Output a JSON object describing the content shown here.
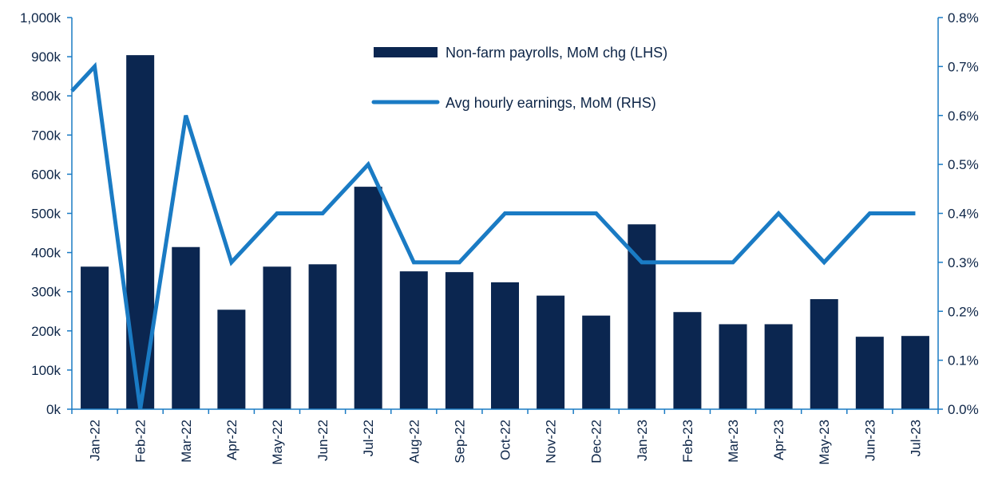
{
  "chart_data": {
    "type": "bar",
    "categories": [
      "Jan-22",
      "Feb-22",
      "Mar-22",
      "Apr-22",
      "May-22",
      "Jun-22",
      "Jul-22",
      "Aug-22",
      "Sep-22",
      "Oct-22",
      "Nov-22",
      "Dec-22",
      "Jan-23",
      "Feb-23",
      "Mar-23",
      "Apr-23",
      "May-23",
      "Jun-23",
      "Jul-23"
    ],
    "series": [
      {
        "name": "Non-farm payrolls, MoM chg (LHS)",
        "type": "bar",
        "axis": "left",
        "color": "#0b2650",
        "values": [
          364,
          904,
          414,
          254,
          364,
          370,
          568,
          352,
          350,
          324,
          290,
          239,
          472,
          248,
          217,
          217,
          281,
          185,
          187
        ]
      },
      {
        "name": "Avg hourly earnings, MoM (RHS)",
        "type": "line",
        "axis": "right",
        "color": "#1a7bc4",
        "start_value": 0.65,
        "values": [
          0.7,
          0.0,
          0.6,
          0.3,
          0.4,
          0.4,
          0.5,
          0.3,
          0.3,
          0.4,
          0.4,
          0.4,
          0.3,
          0.3,
          0.3,
          0.4,
          0.3,
          0.4,
          0.4
        ]
      }
    ],
    "y_left": {
      "min": 0,
      "max": 1000,
      "ticks": [
        0,
        100,
        200,
        300,
        400,
        500,
        600,
        700,
        800,
        900,
        1000
      ],
      "tick_labels": [
        "0k",
        "100k",
        "200k",
        "300k",
        "400k",
        "500k",
        "600k",
        "700k",
        "800k",
        "900k",
        "1,000k"
      ]
    },
    "y_right": {
      "min": 0,
      "max": 0.8,
      "ticks": [
        0,
        0.1,
        0.2,
        0.3,
        0.4,
        0.5,
        0.6,
        0.7,
        0.8
      ],
      "tick_labels": [
        "0.0%",
        "0.1%",
        "0.2%",
        "0.3%",
        "0.4%",
        "0.5%",
        "0.6%",
        "0.7%",
        "0.8%"
      ]
    },
    "title": "",
    "xlabel": "",
    "ylabel": "",
    "grid": false,
    "legend_position": "top-center",
    "axis_color": "#1a7bc4"
  }
}
